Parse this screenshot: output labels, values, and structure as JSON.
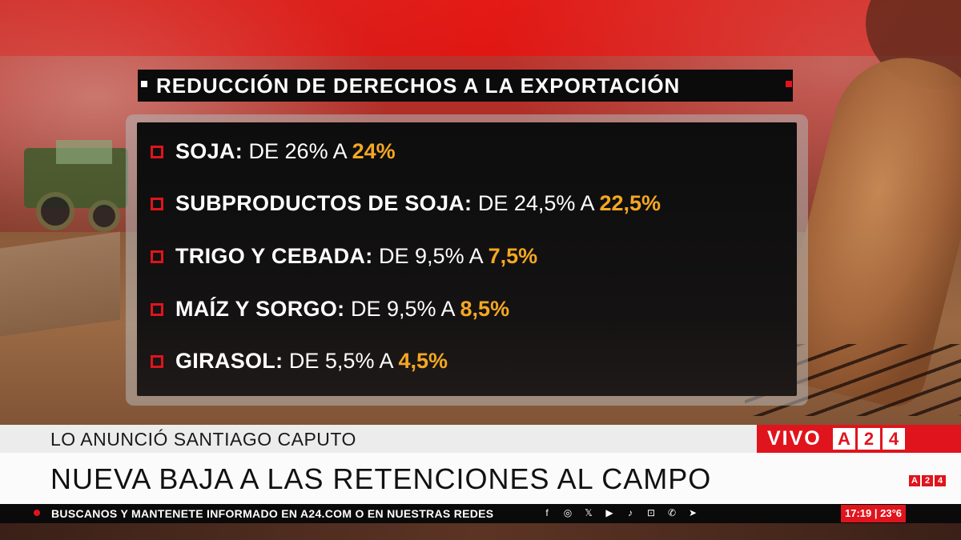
{
  "headline": {
    "title": "REDUCCIÓN DE DERECHOS A LA EXPORTACIÓN"
  },
  "items": [
    {
      "label": "SOJA:",
      "middle": " DE 26% A ",
      "value": "24%"
    },
    {
      "label": "SUBPRODUCTOS DE SOJA:",
      "middle": " DE 24,5% A ",
      "value": "22,5%"
    },
    {
      "label": "TRIGO Y CEBADA:",
      "middle": " DE 9,5% A ",
      "value": "7,5%"
    },
    {
      "label": "MAÍZ Y SORGO:",
      "middle": " DE 9,5% A ",
      "value": "8,5%"
    },
    {
      "label": "GIRASOL:",
      "middle": " DE 5,5% A ",
      "value": "4,5%"
    }
  ],
  "lower_third": {
    "kicker": "LO ANUNCIÓ SANTIAGO CAPUTO",
    "main": "NUEVA BAJA A LAS RETENCIONES AL CAMPO",
    "live": "VIVO",
    "logo": [
      "A",
      "2",
      "4"
    ],
    "small_logo": [
      "A",
      "2",
      "4"
    ]
  },
  "crawl": {
    "text": "BUSCANOS Y MANTENETE INFORMADO EN A24.COM O EN NUESTRAS REDES",
    "socials": [
      "f",
      "◎",
      "𝕏",
      "▶",
      "♪",
      "⊡",
      "✆",
      "➤"
    ],
    "time": "17:19",
    "temp": "23°6"
  },
  "colors": {
    "accent_red": "#e0141c",
    "highlight_orange": "#f4a723"
  }
}
